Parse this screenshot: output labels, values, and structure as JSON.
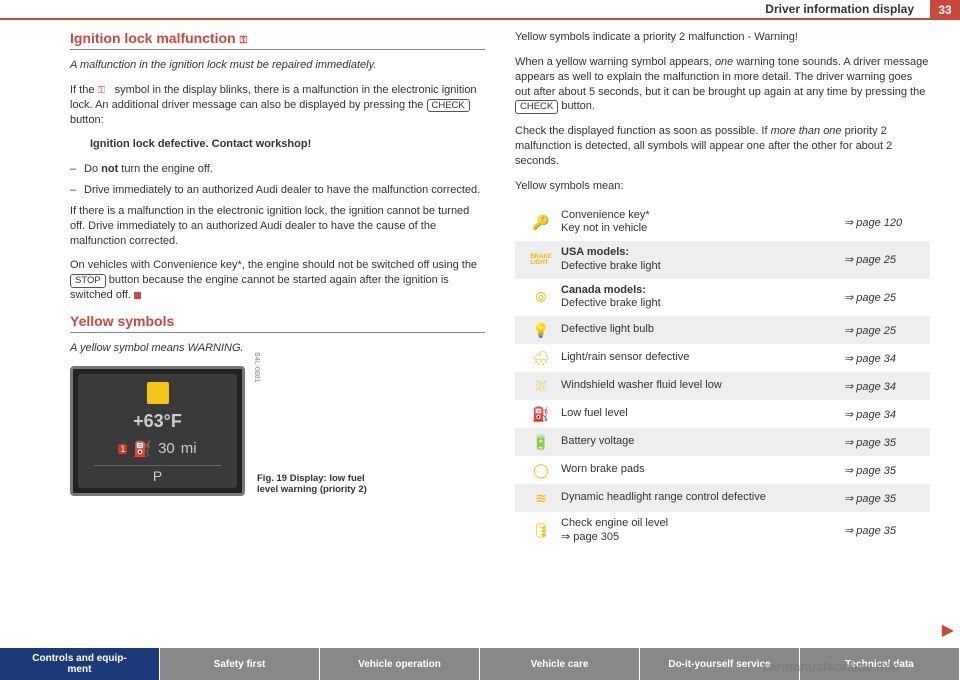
{
  "header": {
    "label": "Driver information display",
    "page": "33"
  },
  "left": {
    "title1": "Ignition lock malfunction",
    "sub1": "A malfunction in the ignition lock must be repaired immediately.",
    "p1a": "If the ",
    "p1b": " symbol in the display blinks, there is a malfunction in the electronic ignition lock. An additional driver message can also be displayed by pressing the ",
    "p1c": " button:",
    "check": "CHECK",
    "defective": "Ignition lock defective. Contact workshop!",
    "b1a": "Do ",
    "b1not": "not",
    "b1b": " turn the engine off.",
    "b2": "Drive immediately to an authorized Audi dealer to have the malfunction corrected.",
    "p2": "If there is a malfunction in the electronic ignition lock, the ignition cannot be turned off. Drive immediately to an authorized Audi dealer to have the cause of the malfunction corrected.",
    "p3a": "On vehicles with Convenience key*, the engine should not be switched off using the ",
    "stop": "STOP",
    "p3b": " button because the engine cannot be started again after the ignition is switched off. ",
    "title2": "Yellow symbols",
    "sub2": "A yellow symbol means WARNING.",
    "display": {
      "temp": "+63°F",
      "dist": "30",
      "unit": "mi",
      "gear": "P",
      "code": "B4L-0881"
    },
    "figcap": "Fig. 19   Display: low fuel level warning (priority 2)"
  },
  "right": {
    "p1": "Yellow symbols indicate a priority 2 malfunction - Warning!",
    "p2a": "When a yellow warning symbol appears, ",
    "p2i": "one",
    "p2b": " warning tone sounds. A driver message appears as well to explain the malfunction in more detail. The driver warning goes out after about 5 seconds, but it can be brought up again at any time by pressing the ",
    "p2c": " button.",
    "p3a": "Check the displayed function as soon as possible. If ",
    "p3i": "more than one",
    "p3b": " priority 2 malfunction is detected, all symbols will appear one after the other for about 2 seconds.",
    "p4": "Yellow symbols mean:",
    "rows": [
      {
        "icon": "🔑",
        "desc": "Convenience key*\nKey not in vehicle",
        "page": "⇒ page 120"
      },
      {
        "icon": "BRAKE",
        "iconText": true,
        "bold1": "USA models:",
        "desc": "Defective brake light",
        "page": "⇒ page 25"
      },
      {
        "icon": "⦾",
        "bold1": "Canada models:",
        "desc": "Defective brake light",
        "page": "⇒ page 25"
      },
      {
        "icon": "💡",
        "desc": "Defective light bulb",
        "page": "⇒ page 25"
      },
      {
        "icon": "🌧",
        "desc": "Light/rain sensor defective",
        "page": "⇒ page 34"
      },
      {
        "icon": "⛆",
        "desc": "Windshield washer fluid level low",
        "page": "⇒ page 34"
      },
      {
        "icon": "⛽",
        "desc": "Low fuel level",
        "page": "⇒ page 34"
      },
      {
        "icon": "🔋",
        "desc": "Battery voltage",
        "page": "⇒ page 35"
      },
      {
        "icon": "◯",
        "desc": "Worn brake pads",
        "page": "⇒ page 35"
      },
      {
        "icon": "≋",
        "desc": "Dynamic headlight range control defective",
        "page": "⇒ page 35"
      },
      {
        "icon": "🛢",
        "desc": "Check engine oil level\n⇒ page 305",
        "page": "⇒ page 35"
      }
    ]
  },
  "tabs": [
    "Controls and equip-\nment",
    "Safety first",
    "Vehicle operation",
    "Vehicle care",
    "Do-it-yourself service",
    "Technical data"
  ],
  "watermark": "carmanualsonline.info"
}
